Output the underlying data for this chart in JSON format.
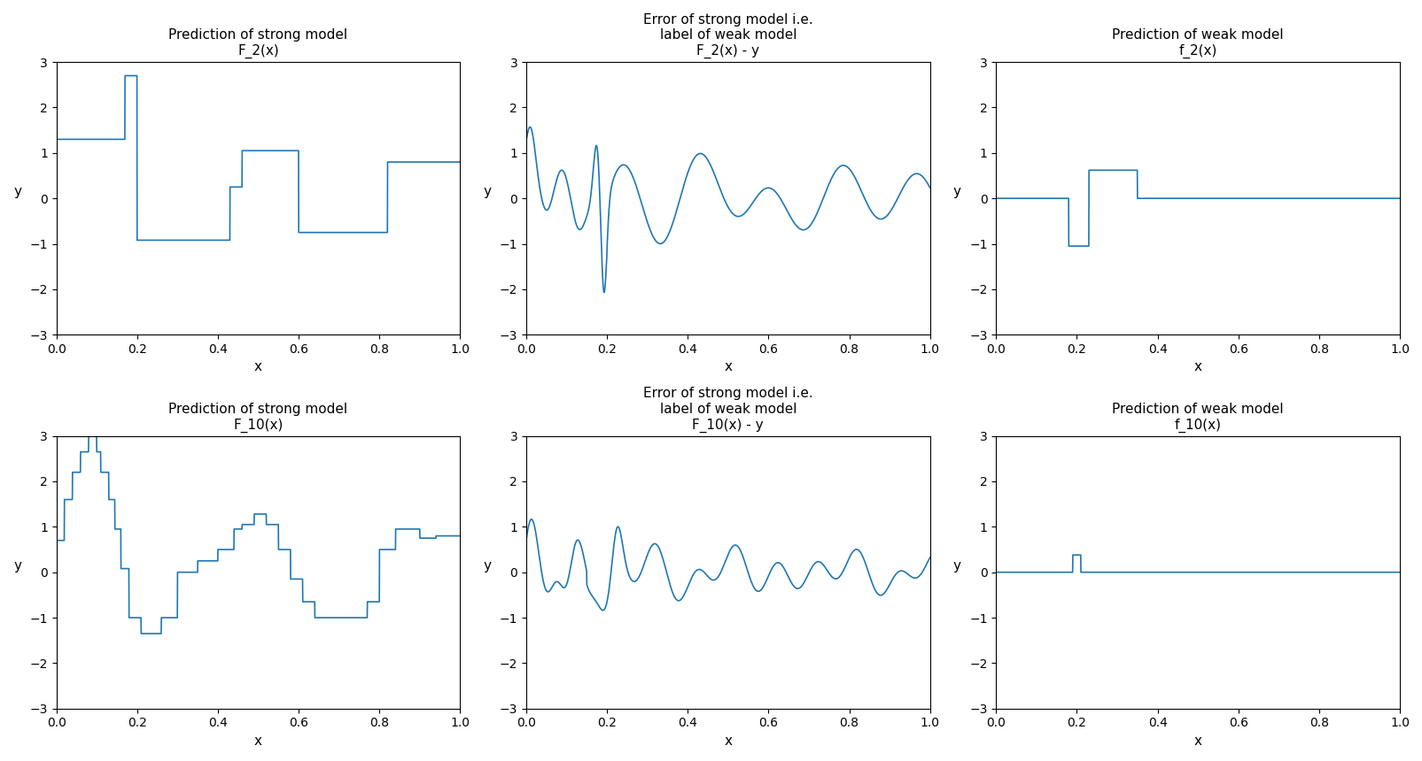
{
  "titles": [
    [
      "Prediction of strong model",
      "F_2(x)"
    ],
    [
      "Error of strong model i.e.\nlabel of weak model",
      "F_2(x) - y"
    ],
    [
      "Prediction of weak model",
      "f_2(x)"
    ],
    [
      "Prediction of strong model",
      "F_10(x)"
    ],
    [
      "Error of strong model i.e.\nlabel of weak model",
      "F_10(x) - y"
    ],
    [
      "Prediction of weak model",
      "f_10(x)"
    ]
  ],
  "ylim": [
    -3,
    3
  ],
  "xlim": [
    0.0,
    1.0
  ],
  "xlabel": "x",
  "ylabel": "y",
  "line_color": "#1f77b4",
  "background_color": "#ffffff",
  "n_points": 2000
}
